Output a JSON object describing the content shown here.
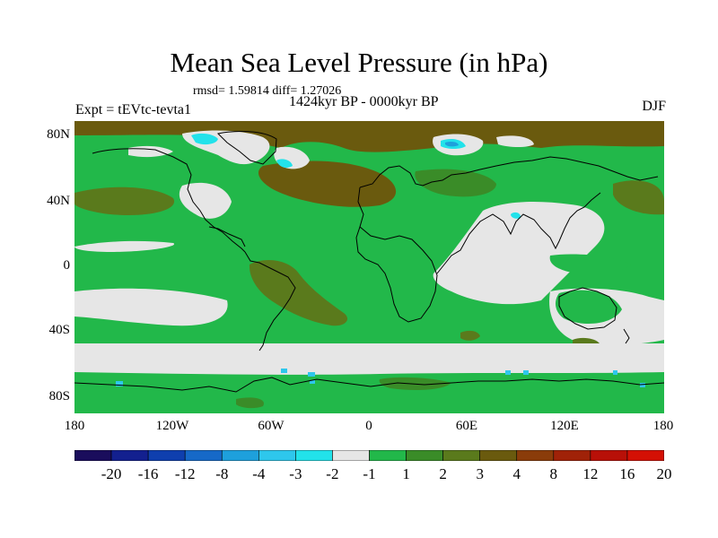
{
  "figure": {
    "title": "Mean Sea Level Pressure (in hPa)",
    "stats": "rmsd= 1.59814 diff= 1.27026",
    "period": "1424kyr BP - 0000kyr BP",
    "experiment": "Expt = tEVtc-tevta1",
    "season": "DJF"
  },
  "map": {
    "projection": "cylindrical equidistant",
    "lat_range": [
      -90,
      90
    ],
    "lon_range": [
      -180,
      180
    ],
    "lat_ticks": [
      {
        "value": 80,
        "label": "80N"
      },
      {
        "value": 40,
        "label": "40N"
      },
      {
        "value": 0,
        "label": "0"
      },
      {
        "value": -40,
        "label": "40S"
      },
      {
        "value": -80,
        "label": "80S"
      }
    ],
    "lon_ticks": [
      {
        "value": -180,
        "label": "180"
      },
      {
        "value": -120,
        "label": "120W"
      },
      {
        "value": -60,
        "label": "60W"
      },
      {
        "value": 0,
        "label": "0"
      },
      {
        "value": 60,
        "label": "60E"
      },
      {
        "value": 120,
        "label": "120E"
      },
      {
        "value": 180,
        "label": "180"
      }
    ]
  },
  "colorbar": {
    "colors": [
      "#1a0d5c",
      "#13208f",
      "#0f3fae",
      "#1669c8",
      "#1ea0dc",
      "#2ec7ec",
      "#22e2ea",
      "#e6e6e6",
      "#22b84a",
      "#3a8c28",
      "#5a7a1c",
      "#6a5a0e",
      "#8a3c0a",
      "#a02208",
      "#b81008",
      "#d41004"
    ],
    "labels": [
      "-20",
      "-16",
      "-12",
      "-8",
      "-4",
      "-3",
      "-2",
      "-1",
      "1",
      "2",
      "3",
      "4",
      "8",
      "12",
      "16",
      "20"
    ]
  }
}
